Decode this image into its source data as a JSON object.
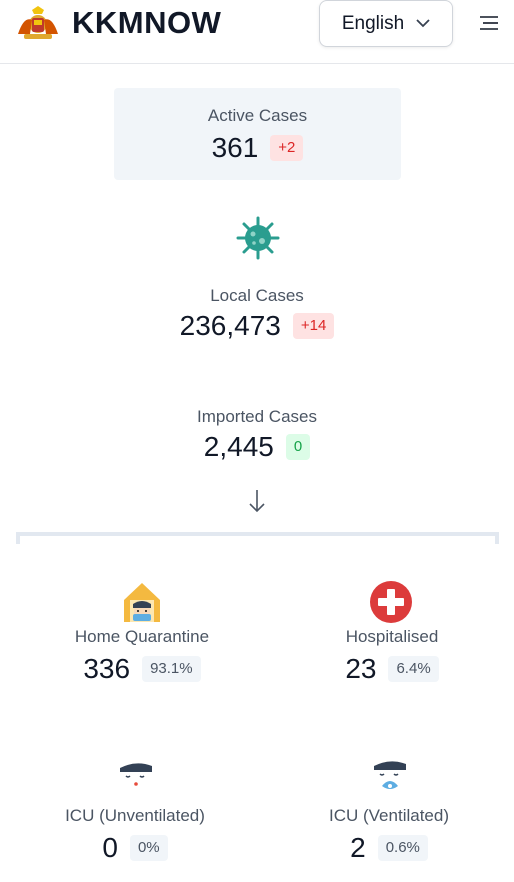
{
  "header": {
    "brand": "KKMNOW",
    "language": "English"
  },
  "active": {
    "label": "Active Cases",
    "value": "361",
    "change": "+2"
  },
  "local": {
    "label": "Local Cases",
    "value": "236,473",
    "change": "+14"
  },
  "imported": {
    "label": "Imported Cases",
    "value": "2,445",
    "change": "0"
  },
  "home_quarantine": {
    "label": "Home Quarantine",
    "value": "336",
    "pct": "93.1%"
  },
  "hospitalised": {
    "label": "Hospitalised",
    "value": "23",
    "pct": "6.4%"
  },
  "icu_unventilated": {
    "label": "ICU (Unventilated)",
    "value": "0",
    "pct": "0%"
  },
  "icu_ventilated": {
    "label": "ICU (Ventilated)",
    "value": "2",
    "pct": "0.6%"
  },
  "icons": {
    "logo": "coat-of-arms-icon",
    "menu": "hamburger-menu-icon",
    "virus": "virus-icon",
    "arrow": "arrow-down-icon",
    "home": "home-quarantine-icon",
    "hospital": "hospital-cross-icon",
    "icu_unvent": "icu-unventilated-icon",
    "icu_vent": "icu-ventilated-icon"
  },
  "colors": {
    "badge_red_bg": "#fee2e2",
    "badge_red_text": "#dc2626",
    "badge_green_bg": "#dcfce7",
    "badge_green_text": "#16a34a",
    "card_bg": "#f1f5f9",
    "hospital_red": "#dc3b3b",
    "virus_teal": "#2a9d8f"
  }
}
